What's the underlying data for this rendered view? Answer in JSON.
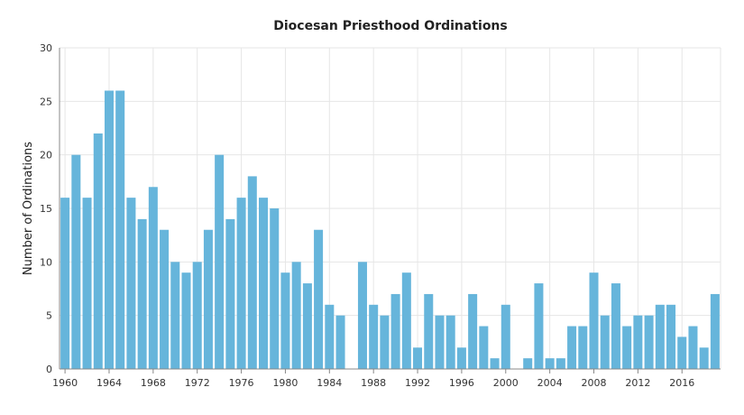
{
  "chart_data": {
    "type": "bar",
    "title": "Diocesan Priesthood Ordinations",
    "xlabel": "",
    "ylabel": "Number of Ordinations",
    "ylim": [
      0,
      30
    ],
    "yticks": [
      0,
      5,
      10,
      15,
      20,
      25,
      30
    ],
    "xticks": [
      1960,
      1964,
      1968,
      1972,
      1976,
      1980,
      1984,
      1988,
      1992,
      1996,
      2000,
      2004,
      2008,
      2012,
      2016
    ],
    "grid": true,
    "bar_color": "#66b5db",
    "categories": [
      1960,
      1961,
      1962,
      1963,
      1964,
      1965,
      1966,
      1967,
      1968,
      1969,
      1970,
      1971,
      1972,
      1973,
      1974,
      1975,
      1976,
      1977,
      1978,
      1979,
      1980,
      1981,
      1982,
      1983,
      1984,
      1985,
      1986,
      1987,
      1988,
      1989,
      1990,
      1991,
      1992,
      1993,
      1994,
      1995,
      1996,
      1997,
      1998,
      1999,
      2000,
      2001,
      2002,
      2003,
      2004,
      2005,
      2006,
      2007,
      2008,
      2009,
      2010,
      2011,
      2012,
      2013,
      2014,
      2015,
      2016,
      2017,
      2018,
      2019
    ],
    "values": [
      16,
      20,
      16,
      22,
      26,
      26,
      16,
      14,
      17,
      13,
      10,
      9,
      10,
      13,
      20,
      14,
      16,
      18,
      16,
      15,
      9,
      10,
      8,
      13,
      6,
      5,
      0,
      10,
      6,
      5,
      7,
      9,
      2,
      7,
      5,
      5,
      2,
      7,
      4,
      1,
      6,
      0,
      1,
      8,
      1,
      1,
      4,
      4,
      9,
      5,
      8,
      4,
      5,
      5,
      6,
      6,
      3,
      4,
      2,
      7
    ]
  }
}
